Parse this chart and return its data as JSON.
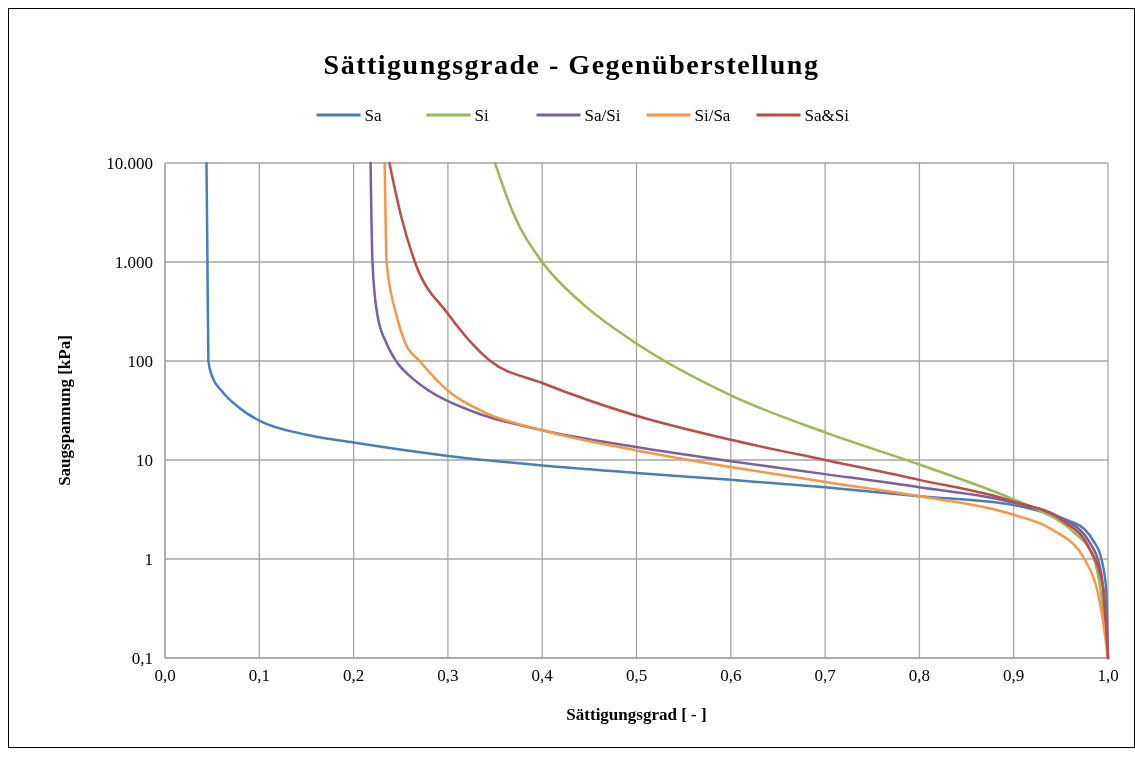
{
  "chart_data": {
    "type": "line",
    "title": "Sättigungsgrade - Gegenüberstellung",
    "xlabel": "Sättigungsgrad [ - ]",
    "ylabel": "Saugspannung [kPa]",
    "log": "y",
    "grid": true,
    "legend": "top",
    "marker": "none",
    "line_style": "solid",
    "xlim": [
      0,
      1
    ],
    "ylim": [
      0.1,
      10000
    ],
    "xticks": [
      {
        "value": 0,
        "label": "0,0"
      },
      {
        "value": 0.1,
        "label": "0,1"
      },
      {
        "value": 0.2,
        "label": "0,2"
      },
      {
        "value": 0.3,
        "label": "0,3"
      },
      {
        "value": 0.4,
        "label": "0,4"
      },
      {
        "value": 0.5,
        "label": "0,5"
      },
      {
        "value": 0.6,
        "label": "0,6"
      },
      {
        "value": 0.7,
        "label": "0,7"
      },
      {
        "value": 0.8,
        "label": "0,8"
      },
      {
        "value": 0.9,
        "label": "0,9"
      },
      {
        "value": 1,
        "label": "1,0"
      }
    ],
    "yticks": [
      {
        "value": 0.1,
        "label": "0,1"
      },
      1,
      10,
      100,
      {
        "value": 1000,
        "label": "1.000"
      },
      {
        "value": 10000,
        "label": "10.000"
      }
    ],
    "series": [
      {
        "name": "Sa",
        "color": "#4a7ebb",
        "x": [
          0.044,
          0.045,
          0.046,
          0.05,
          0.06,
          0.08,
          0.1,
          0.15,
          0.2,
          0.3,
          0.4,
          0.5,
          0.6,
          0.7,
          0.8,
          0.9,
          0.93,
          0.96,
          0.975,
          0.985,
          0.993,
          0.998,
          1.0
        ],
        "values": [
          10000,
          1000,
          100,
          70,
          50,
          33,
          25,
          18,
          15,
          11,
          8.8,
          7.4,
          6.3,
          5.3,
          4.3,
          3.5,
          3,
          2.4,
          2,
          1.5,
          1,
          0.5,
          0.1
        ]
      },
      {
        "name": "Si",
        "color": "#98b954",
        "x": [
          0.35,
          0.37,
          0.4,
          0.44,
          0.5,
          0.6,
          0.7,
          0.8,
          0.9,
          0.93,
          0.96,
          0.985,
          0.995,
          1.0
        ],
        "values": [
          10000,
          3000,
          1000,
          400,
          150,
          45,
          19,
          9,
          4,
          3,
          2,
          1,
          0.3,
          0.1
        ]
      },
      {
        "name": "Sa/Si",
        "color": "#7d5fa0",
        "x": [
          0.218,
          0.22,
          0.225,
          0.235,
          0.245,
          0.26,
          0.28,
          0.33,
          0.4,
          0.5,
          0.6,
          0.7,
          0.8,
          0.9,
          0.95,
          0.98,
          0.993,
          1.0
        ],
        "values": [
          10000,
          1000,
          300,
          150,
          100,
          70,
          50,
          30,
          20,
          13.5,
          9.7,
          7.2,
          5.3,
          3.7,
          2.6,
          1.5,
          0.7,
          0.1
        ]
      },
      {
        "name": "Si/Sa",
        "color": "#f79646",
        "x": [
          0.233,
          0.235,
          0.245,
          0.255,
          0.27,
          0.3,
          0.34,
          0.4,
          0.5,
          0.6,
          0.7,
          0.8,
          0.9,
          0.94,
          0.975,
          0.993,
          1.0
        ],
        "values": [
          10000,
          1000,
          300,
          150,
          100,
          50,
          30,
          20,
          12.5,
          8.5,
          6,
          4.3,
          2.8,
          2,
          1,
          0.3,
          0.1
        ]
      },
      {
        "name": "Sa&Si",
        "color": "#be4b48",
        "x": [
          0.238,
          0.25,
          0.265,
          0.3,
          0.345,
          0.4,
          0.5,
          0.6,
          0.7,
          0.8,
          0.9,
          0.95,
          0.98,
          0.995,
          1.0
        ],
        "values": [
          10000,
          3000,
          1000,
          300,
          100,
          60,
          28,
          16,
          10,
          6.3,
          3.8,
          2.5,
          1.3,
          0.5,
          0.1
        ]
      }
    ]
  }
}
